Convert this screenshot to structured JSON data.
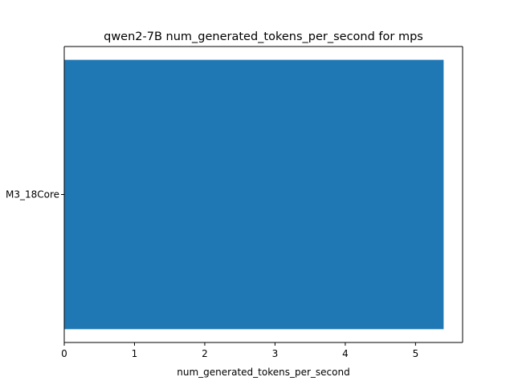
{
  "chart_data": {
    "type": "bar",
    "orientation": "horizontal",
    "title": "qwen2-7B num_generated_tokens_per_second for mps",
    "xlabel": "num_generated_tokens_per_second",
    "ylabel": "",
    "categories": [
      "M3_18Core"
    ],
    "values": [
      5.4
    ],
    "xlim": [
      0,
      5.67
    ],
    "xticks": [
      0,
      1,
      2,
      3,
      4,
      5
    ],
    "grid": false,
    "bar_color": "#1f77b4"
  }
}
